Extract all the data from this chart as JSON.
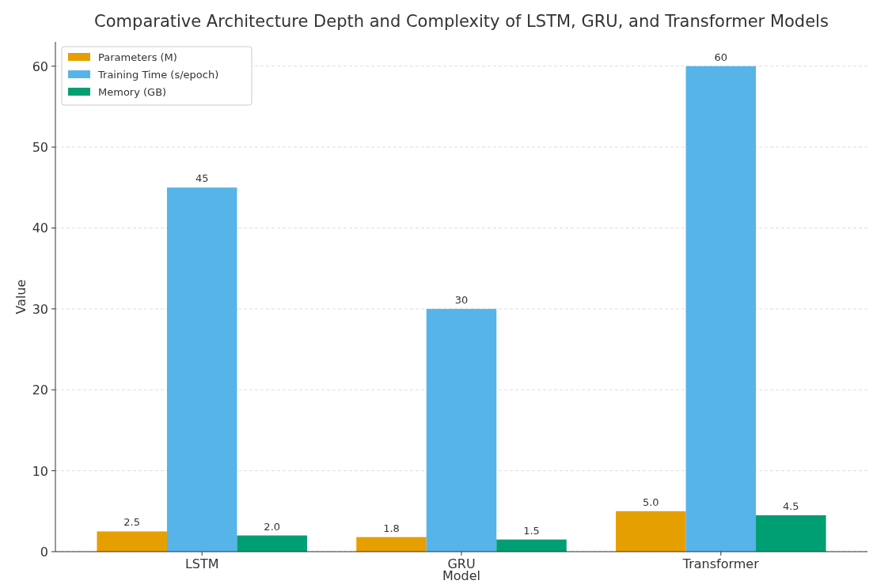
{
  "chart_data": {
    "type": "bar",
    "title": "Comparative Architecture Depth and Complexity of LSTM, GRU, and Transformer Models",
    "xlabel": "Model",
    "ylabel": "Value",
    "categories": [
      "LSTM",
      "GRU",
      "Transformer"
    ],
    "series": [
      {
        "name": "Parameters (M)",
        "color": "#e69f00",
        "values": [
          2.5,
          1.8,
          5.0
        ],
        "value_labels": [
          "2.5",
          "1.8",
          "5.0"
        ]
      },
      {
        "name": "Training Time (s/epoch)",
        "color": "#56b4e9",
        "values": [
          45,
          30,
          60
        ],
        "value_labels": [
          "45",
          "30",
          "60"
        ]
      },
      {
        "name": "Memory (GB)",
        "color": "#009e73",
        "values": [
          2.0,
          1.5,
          4.5
        ],
        "value_labels": [
          "2.0",
          "1.5",
          "4.5"
        ]
      }
    ],
    "ylim": [
      0,
      63
    ],
    "yticks": [
      0,
      10,
      20,
      30,
      40,
      50,
      60
    ],
    "grid": "y",
    "legend": "top left"
  }
}
